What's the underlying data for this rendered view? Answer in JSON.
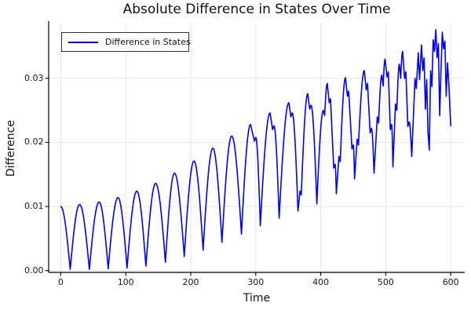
{
  "figure": {
    "title": "Absolute Difference in States Over Time",
    "background": "#ffffff"
  },
  "chart_data": {
    "type": "line",
    "title": "Absolute Difference in States Over Time",
    "xlabel": "Time",
    "ylabel": "Difference",
    "x_ticks": [
      0,
      100,
      200,
      300,
      400,
      500,
      600
    ],
    "x_tick_labels": [
      "0",
      "100",
      "200",
      "300",
      "400",
      "500",
      "600"
    ],
    "y_ticks": [
      0.0,
      0.01,
      0.02,
      0.03
    ],
    "y_tick_labels": [
      "0.00",
      "0.01",
      "0.02",
      "0.03"
    ],
    "xlim": [
      -18.6,
      621.5
    ],
    "ylim": [
      -0.00028,
      0.03855
    ],
    "grid": true,
    "grid_color": "#e4e4e4",
    "axis_color": "#000000",
    "tick_label_color": "#1a1a1a",
    "legend_position": "top-left",
    "legend": [
      "Difference in States"
    ],
    "series": [
      {
        "name": "Difference in States",
        "color": "#0000ff",
        "line_width": 1.6,
        "points": [
          [
            0,
            0.01
          ],
          [
            14.5,
            0.0002
          ],
          [
            29,
            0.0103
          ],
          [
            44,
            0.0002
          ],
          [
            59,
            0.0107
          ],
          [
            73,
            0.0003
          ],
          [
            88,
            0.0114
          ],
          [
            102,
            0.0004
          ],
          [
            117,
            0.0124
          ],
          [
            131,
            0.0007
          ],
          [
            146,
            0.0136
          ],
          [
            161,
            0.0013
          ],
          [
            175,
            0.0152
          ],
          [
            190,
            0.0022
          ],
          [
            205,
            0.0171
          ],
          [
            219,
            0.0032
          ],
          [
            234,
            0.0191
          ],
          [
            248,
            0.0044
          ],
          [
            263,
            0.021
          ],
          [
            278,
            0.0057
          ],
          [
            292,
            0.0228
          ],
          [
            298,
            0.0202,
            1
          ],
          [
            300,
            0.0208,
            1
          ],
          [
            307,
            0.007
          ],
          [
            322,
            0.0246
          ],
          [
            326,
            0.022,
            1
          ],
          [
            328,
            0.0226,
            1
          ],
          [
            336,
            0.0082
          ],
          [
            351,
            0.0262
          ],
          [
            354,
            0.024,
            1
          ],
          [
            356,
            0.0246,
            1
          ],
          [
            365,
            0.0093
          ],
          [
            368,
            0.0124,
            1
          ],
          [
            370,
            0.0118,
            1
          ],
          [
            380,
            0.0276
          ],
          [
            383,
            0.0252,
            1
          ],
          [
            385,
            0.0258,
            1
          ],
          [
            394,
            0.0104
          ],
          [
            404,
            0.025
          ],
          [
            406,
            0.0242,
            1
          ],
          [
            410,
            0.0292
          ],
          [
            413,
            0.0262,
            1
          ],
          [
            415,
            0.0268,
            1
          ],
          [
            420,
            0.016,
            1
          ],
          [
            422,
            0.0166,
            1
          ],
          [
            424,
            0.012
          ],
          [
            428,
            0.0178,
            1
          ],
          [
            430,
            0.017,
            1
          ],
          [
            438,
            0.0301
          ],
          [
            441,
            0.0272,
            1
          ],
          [
            443,
            0.028,
            1
          ],
          [
            448,
            0.019,
            1
          ],
          [
            450,
            0.0196,
            1
          ],
          [
            452,
            0.0143
          ],
          [
            456,
            0.0205,
            1
          ],
          [
            458,
            0.0196,
            1
          ],
          [
            467,
            0.0312
          ],
          [
            470,
            0.0282,
            1
          ],
          [
            472,
            0.0292,
            1
          ],
          [
            476,
            0.0215,
            1
          ],
          [
            478,
            0.0222,
            1
          ],
          [
            482,
            0.0152
          ],
          [
            487,
            0.024,
            1
          ],
          [
            489,
            0.023,
            1
          ],
          [
            494,
            0.0305
          ],
          [
            496,
            0.0288,
            1
          ],
          [
            499,
            0.033
          ],
          [
            502,
            0.0302,
            1
          ],
          [
            504,
            0.031,
            1
          ],
          [
            507,
            0.022,
            1
          ],
          [
            509,
            0.0228,
            1
          ],
          [
            511,
            0.0162
          ],
          [
            515,
            0.026,
            1
          ],
          [
            517,
            0.025,
            1
          ],
          [
            521,
            0.0322
          ],
          [
            523,
            0.03,
            1
          ],
          [
            526,
            0.0342
          ],
          [
            529,
            0.03,
            1
          ],
          [
            531,
            0.031,
            1
          ],
          [
            534,
            0.0225,
            1
          ],
          [
            536,
            0.0232,
            1
          ],
          [
            540,
            0.0178
          ],
          [
            545,
            0.03,
            1
          ],
          [
            547,
            0.0284,
            1
          ],
          [
            550,
            0.034,
            1
          ],
          [
            552,
            0.0298,
            1
          ],
          [
            555,
            0.0352,
            1
          ],
          [
            557,
            0.0312,
            1
          ],
          [
            559,
            0.0332,
            1
          ],
          [
            561,
            0.0252,
            1
          ],
          [
            563,
            0.0298,
            1
          ],
          [
            565,
            0.0216,
            1
          ],
          [
            567,
            0.0188,
            1
          ],
          [
            569,
            0.0312,
            1
          ],
          [
            571,
            0.0287,
            1
          ],
          [
            573,
            0.036,
            1
          ],
          [
            575,
            0.0342,
            1
          ],
          [
            577,
            0.0376,
            1
          ],
          [
            579,
            0.0332,
            1
          ],
          [
            581,
            0.0354,
            1
          ],
          [
            583,
            0.0242,
            1
          ],
          [
            585,
            0.0312,
            1
          ],
          [
            587,
            0.0372,
            1
          ],
          [
            589,
            0.0346,
            1
          ],
          [
            591,
            0.0358,
            1
          ],
          [
            593,
            0.0272,
            1
          ],
          [
            595,
            0.0324,
            1
          ],
          [
            597,
            0.0292,
            1
          ],
          [
            600,
            0.0226,
            1
          ]
        ]
      }
    ]
  }
}
